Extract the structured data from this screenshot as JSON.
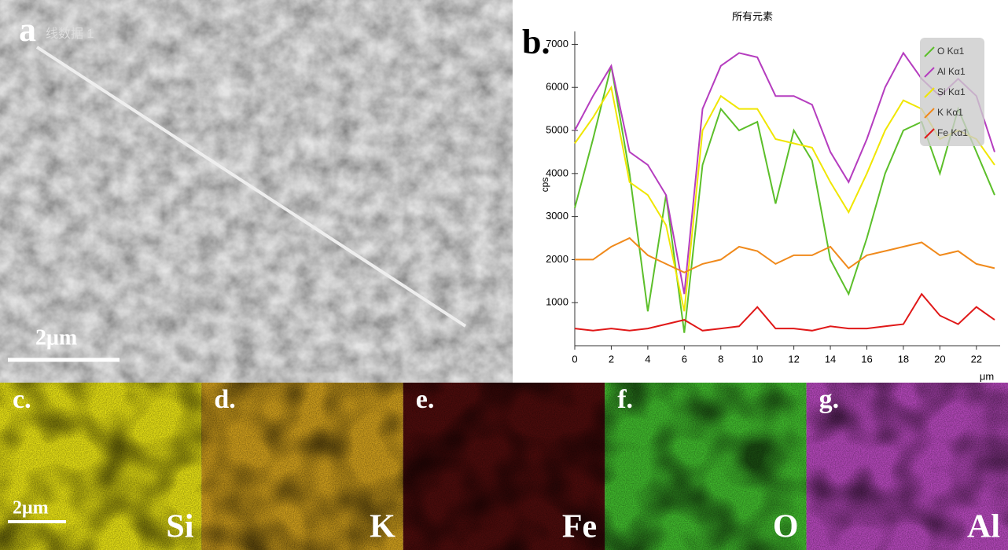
{
  "panel_a": {
    "label": "a",
    "line_label": "线数据 1",
    "scale": "2μm"
  },
  "chart_data": {
    "type": "line",
    "label": "b.",
    "title": "所有元素",
    "y_label": "cps",
    "x_label": "μm",
    "x": [
      0,
      1,
      2,
      3,
      4,
      5,
      6,
      7,
      8,
      9,
      10,
      11,
      12,
      13,
      14,
      15,
      16,
      17,
      18,
      19,
      20,
      21,
      22,
      23
    ],
    "xlim": [
      0,
      23.3
    ],
    "ylim": [
      0,
      7300
    ],
    "xticks": [
      0,
      2,
      4,
      6,
      8,
      10,
      12,
      14,
      16,
      18,
      20,
      22
    ],
    "yticks": [
      1000,
      2000,
      3000,
      4000,
      5000,
      6000,
      7000
    ],
    "legend": "upper right",
    "series": [
      {
        "name": "O Kα1",
        "color": "#5cbf2a",
        "values": [
          3200,
          4800,
          6500,
          4000,
          800,
          3500,
          300,
          4200,
          5500,
          5000,
          5200,
          3300,
          5000,
          4300,
          2000,
          1200,
          2500,
          4000,
          5000,
          5200,
          4000,
          5500,
          4500,
          3500
        ]
      },
      {
        "name": "Al Kα1",
        "color": "#b53dbf",
        "values": [
          5000,
          5800,
          6500,
          4500,
          4200,
          3500,
          1200,
          5500,
          6500,
          6800,
          6700,
          5800,
          5800,
          5600,
          4500,
          3800,
          4800,
          6000,
          6800,
          6200,
          5800,
          6200,
          5800,
          4500
        ]
      },
      {
        "name": "Si Kα1",
        "color": "#f0e600",
        "values": [
          4700,
          5300,
          6000,
          3800,
          3500,
          2800,
          800,
          5000,
          5800,
          5500,
          5500,
          4800,
          4700,
          4600,
          3800,
          3100,
          4000,
          5000,
          5700,
          5500,
          4800,
          5000,
          4800,
          4200
        ]
      },
      {
        "name": "K Kα1",
        "color": "#f08a1c",
        "values": [
          2000,
          2000,
          2300,
          2500,
          2100,
          1900,
          1700,
          1900,
          2000,
          2300,
          2200,
          1900,
          2100,
          2100,
          2300,
          1800,
          2100,
          2200,
          2300,
          2400,
          2100,
          2200,
          1900,
          1800
        ]
      },
      {
        "name": "Fe Kα1",
        "color": "#e01818",
        "values": [
          400,
          350,
          400,
          350,
          400,
          500,
          600,
          350,
          400,
          450,
          900,
          400,
          400,
          350,
          450,
          400,
          400,
          450,
          500,
          1200,
          700,
          500,
          900,
          600
        ]
      }
    ]
  },
  "maps": [
    {
      "label": "c.",
      "element": "Si",
      "color": "#e2dc14"
    },
    {
      "label": "d.",
      "element": "K",
      "color": "#c99a1c"
    },
    {
      "label": "e.",
      "element": "Fe",
      "color": "#4a0c0c"
    },
    {
      "label": "f.",
      "element": "O",
      "color": "#3fb52c"
    },
    {
      "label": "g.",
      "element": "Al",
      "color": "#b046b6"
    }
  ],
  "maps_scale": "2μm"
}
